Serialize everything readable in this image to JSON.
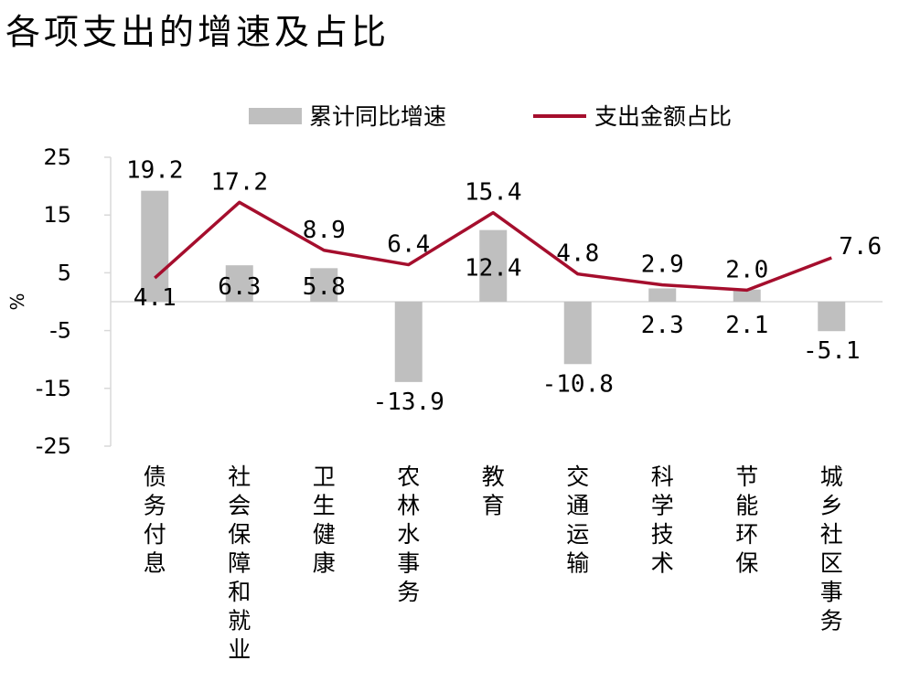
{
  "title": "各项支出的增速及占比",
  "chart_data": {
    "type": "bar",
    "categories": [
      "债务付息",
      "社会保障和就业",
      "卫生健康",
      "农林水事务",
      "教育",
      "交通运输",
      "科学技术",
      "节能环保",
      "城乡社区事务"
    ],
    "series": [
      {
        "name": "累计同比增速",
        "type": "bar",
        "color": "#bfbfbf",
        "values": [
          19.2,
          6.3,
          5.8,
          -13.9,
          12.4,
          -10.8,
          2.3,
          2.1,
          -5.1
        ],
        "labels": [
          "19.2",
          "6.3",
          "5.8",
          "-13.9",
          "12.4",
          "-10.8",
          "2.3",
          "2.1",
          "-5.1"
        ]
      },
      {
        "name": "支出金额占比",
        "type": "line",
        "color": "#a50e2d",
        "values": [
          4.1,
          17.2,
          8.9,
          6.4,
          15.4,
          4.8,
          2.9,
          2.0,
          7.6
        ],
        "labels": [
          "4.1",
          "17.2",
          "8.9",
          "6.4",
          "15.4",
          "4.8",
          "2.9",
          "2.0",
          "7.6"
        ]
      }
    ],
    "ylabel": "%",
    "ylim": [
      -25,
      25
    ],
    "yticks": [
      "25",
      "15",
      "5",
      "-5",
      "-15",
      "-25"
    ],
    "grid": false,
    "legend_position": "top"
  }
}
